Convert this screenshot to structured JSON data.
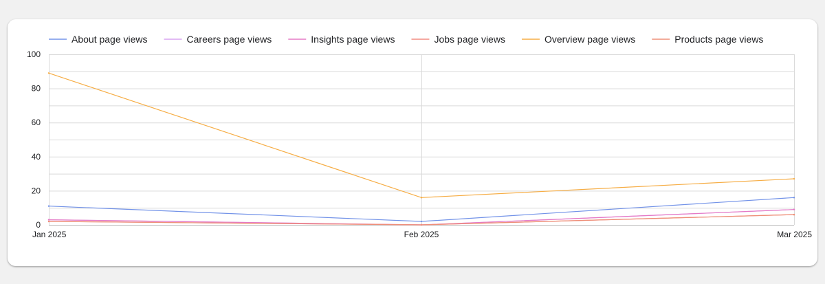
{
  "chart_data": {
    "type": "line",
    "x": [
      "Jan 2025",
      "Feb 2025",
      "Mar 2025"
    ],
    "series": [
      {
        "name": "About page views",
        "color": "#7393e8",
        "values": [
          11,
          2,
          16
        ]
      },
      {
        "name": "Careers page views",
        "color": "#d9a3f0",
        "values": [
          3,
          0,
          9
        ]
      },
      {
        "name": "Insights page views",
        "color": "#e57ac5",
        "values": [
          3,
          0,
          9
        ]
      },
      {
        "name": "Jobs page views",
        "color": "#f28b82",
        "values": [
          2,
          0,
          6
        ]
      },
      {
        "name": "Overview page views",
        "color": "#f6ad45",
        "values": [
          89,
          16,
          27
        ]
      },
      {
        "name": "Products page views",
        "color": "#ee8f78",
        "values": [
          2,
          0,
          6
        ]
      }
    ],
    "ylim": [
      0,
      100
    ],
    "yticks": [
      0,
      20,
      40,
      60,
      80,
      100
    ],
    "grid": true,
    "legend": "top"
  }
}
